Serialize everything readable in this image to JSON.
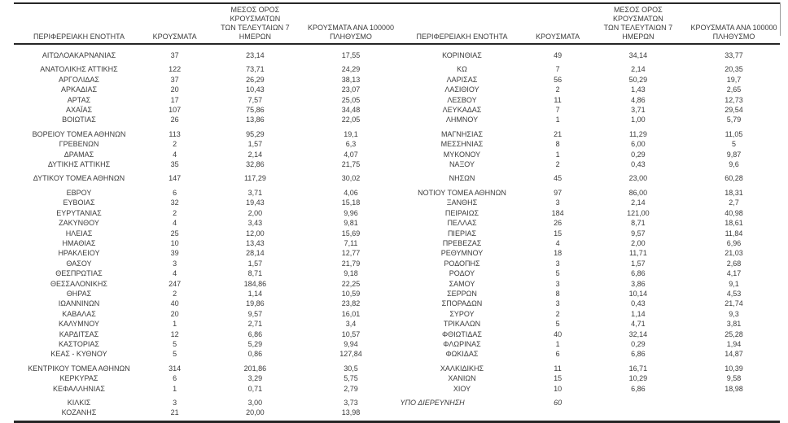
{
  "header": {
    "region": "ΠΕΡΙΦΕΡΕΙΑΚΗ ΕΝΟΤΗΤΑ",
    "cases": "ΚΡΟΥΣΜΑΤΑ",
    "avg7": "ΜΕΣΟΣ ΟΡΟΣ ΚΡΟΥΣΜΑΤΩΝ\nΤΩΝ ΤΕΛΕΥΤΑΙΩΝ 7\nΗΜΕΡΩΝ",
    "per100k": "ΚΡΟΥΣΜΑΤΑ ΑΝΑ 100000\nΠΛΗΘΥΣΜΟ"
  },
  "colors": {
    "text": "#3c3c3c",
    "rule": "#262626",
    "edge_tick": "#9b9b9b",
    "background": "#ffffff"
  },
  "tables": {
    "left": {
      "groups": [
        {
          "rows": [
            {
              "region": "ΑΙΤΩΛΟΑΚΑΡΝΑΝΙΑΣ",
              "cases": "37",
              "avg7": "23,14",
              "per100k": "17,55"
            }
          ]
        },
        {
          "rows": [
            {
              "region": "ΑΝΑΤΟΛΙΚΗΣ ΑΤΤΙΚΗΣ",
              "cases": "122",
              "avg7": "73,71",
              "per100k": "24,29"
            },
            {
              "region": "ΑΡΓΟΛΙΔΑΣ",
              "cases": "37",
              "avg7": "26,29",
              "per100k": "38,13"
            },
            {
              "region": "ΑΡΚΑΔΙΑΣ",
              "cases": "20",
              "avg7": "10,43",
              "per100k": "23,07"
            },
            {
              "region": "ΑΡΤΑΣ",
              "cases": "17",
              "avg7": "7,57",
              "per100k": "25,05"
            },
            {
              "region": "ΑΧΑΪΑΣ",
              "cases": "107",
              "avg7": "75,86",
              "per100k": "34,48"
            },
            {
              "region": "ΒΟΙΩΤΙΑΣ",
              "cases": "26",
              "avg7": "13,86",
              "per100k": "22,05"
            }
          ]
        },
        {
          "rows": [
            {
              "region": "ΒΟΡΕΙΟΥ ΤΟΜΕΑ ΑΘΗΝΩΝ",
              "cases": "113",
              "avg7": "95,29",
              "per100k": "19,1"
            },
            {
              "region": "ΓΡΕΒΕΝΩΝ",
              "cases": "2",
              "avg7": "1,57",
              "per100k": "6,3"
            },
            {
              "region": "ΔΡΑΜΑΣ",
              "cases": "4",
              "avg7": "2,14",
              "per100k": "4,07"
            },
            {
              "region": "ΔΥΤΙΚΗΣ ΑΤΤΙΚΗΣ",
              "cases": "35",
              "avg7": "32,86",
              "per100k": "21,75"
            }
          ]
        },
        {
          "rows": [
            {
              "region": "ΔΥΤΙΚΟΥ ΤΟΜΕΑ ΑΘΗΝΩΝ",
              "cases": "147",
              "avg7": "117,29",
              "per100k": "30,02"
            }
          ]
        },
        {
          "rows": [
            {
              "region": "ΕΒΡΟΥ",
              "cases": "6",
              "avg7": "3,71",
              "per100k": "4,06"
            },
            {
              "region": "ΕΥΒΟΙΑΣ",
              "cases": "32",
              "avg7": "19,43",
              "per100k": "15,18"
            },
            {
              "region": "ΕΥΡΥΤΑΝΙΑΣ",
              "cases": "2",
              "avg7": "2,00",
              "per100k": "9,96"
            },
            {
              "region": "ΖΑΚΥΝΘΟΥ",
              "cases": "4",
              "avg7": "3,43",
              "per100k": "9,81"
            },
            {
              "region": "ΗΛΕΙΑΣ",
              "cases": "25",
              "avg7": "12,00",
              "per100k": "15,69"
            },
            {
              "region": "ΗΜΑΘΙΑΣ",
              "cases": "10",
              "avg7": "13,43",
              "per100k": "7,11"
            },
            {
              "region": "ΗΡΑΚΛΕΙΟΥ",
              "cases": "39",
              "avg7": "28,14",
              "per100k": "12,77"
            },
            {
              "region": "ΘΑΣΟΥ",
              "cases": "3",
              "avg7": "1,57",
              "per100k": "21,79"
            },
            {
              "region": "ΘΕΣΠΡΩΤΙΑΣ",
              "cases": "4",
              "avg7": "8,71",
              "per100k": "9,18"
            },
            {
              "region": "ΘΕΣΣΑΛΟΝΙΚΗΣ",
              "cases": "247",
              "avg7": "184,86",
              "per100k": "22,25"
            },
            {
              "region": "ΘΗΡΑΣ",
              "cases": "2",
              "avg7": "1,14",
              "per100k": "10,59"
            },
            {
              "region": "ΙΩΑΝΝΙΝΩΝ",
              "cases": "40",
              "avg7": "19,86",
              "per100k": "23,82"
            },
            {
              "region": "ΚΑΒΑΛΑΣ",
              "cases": "20",
              "avg7": "9,57",
              "per100k": "16,01"
            },
            {
              "region": "ΚΑΛΥΜΝΟΥ",
              "cases": "1",
              "avg7": "2,71",
              "per100k": "3,4"
            },
            {
              "region": "ΚΑΡΔΙΤΣΑΣ",
              "cases": "12",
              "avg7": "6,86",
              "per100k": "10,57"
            },
            {
              "region": "ΚΑΣΤΟΡΙΑΣ",
              "cases": "5",
              "avg7": "5,29",
              "per100k": "9,94"
            },
            {
              "region": "ΚΕΑΣ - ΚΥΘΝΟΥ",
              "cases": "5",
              "avg7": "0,86",
              "per100k": "127,84"
            }
          ]
        },
        {
          "rows": [
            {
              "region": "ΚΕΝΤΡΙΚΟΥ ΤΟΜΕΑ ΑΘΗΝΩΝ",
              "cases": "314",
              "avg7": "201,86",
              "per100k": "30,5"
            },
            {
              "region": "ΚΕΡΚΥΡΑΣ",
              "cases": "6",
              "avg7": "3,29",
              "per100k": "5,75"
            },
            {
              "region": "ΚΕΦΑΛΛΗΝΙΑΣ",
              "cases": "1",
              "avg7": "0,71",
              "per100k": "2,79"
            }
          ]
        },
        {
          "rows": [
            {
              "region": "ΚΙΛΚΙΣ",
              "cases": "3",
              "avg7": "3,00",
              "per100k": "3,73"
            },
            {
              "region": "ΚΟΖΑΝΗΣ",
              "cases": "21",
              "avg7": "20,00",
              "per100k": "13,98"
            }
          ]
        }
      ]
    },
    "right": {
      "groups": [
        {
          "rows": [
            {
              "region": "ΚΟΡΙΝΘΙΑΣ",
              "cases": "49",
              "avg7": "34,14",
              "per100k": "33,77"
            }
          ]
        },
        {
          "rows": [
            {
              "region": "ΚΩ",
              "cases": "7",
              "avg7": "2,14",
              "per100k": "20,35"
            },
            {
              "region": "ΛΑΡΙΣΑΣ",
              "cases": "56",
              "avg7": "50,29",
              "per100k": "19,7"
            },
            {
              "region": "ΛΑΣΙΘΙΟΥ",
              "cases": "2",
              "avg7": "1,43",
              "per100k": "2,65"
            },
            {
              "region": "ΛΕΣΒΟΥ",
              "cases": "11",
              "avg7": "4,86",
              "per100k": "12,73"
            },
            {
              "region": "ΛΕΥΚΑΔΑΣ",
              "cases": "7",
              "avg7": "3,71",
              "per100k": "29,54"
            },
            {
              "region": "ΛΗΜΝΟΥ",
              "cases": "1",
              "avg7": "1,00",
              "per100k": "5,79"
            }
          ]
        },
        {
          "rows": [
            {
              "region": "ΜΑΓΝΗΣΙΑΣ",
              "cases": "21",
              "avg7": "11,29",
              "per100k": "11,05"
            },
            {
              "region": "ΜΕΣΣΗΝΙΑΣ",
              "cases": "8",
              "avg7": "6,00",
              "per100k": "5"
            },
            {
              "region": "ΜΥΚΟΝΟΥ",
              "cases": "1",
              "avg7": "0,29",
              "per100k": "9,87"
            },
            {
              "region": "ΝΑΞΟΥ",
              "cases": "2",
              "avg7": "0,43",
              "per100k": "9,6"
            }
          ]
        },
        {
          "rows": [
            {
              "region": "ΝΗΣΩΝ",
              "cases": "45",
              "avg7": "23,00",
              "per100k": "60,28"
            }
          ]
        },
        {
          "rows": [
            {
              "region": "ΝΟΤΙΟΥ ΤΟΜΕΑ ΑΘΗΝΩΝ",
              "cases": "97",
              "avg7": "86,00",
              "per100k": "18,31"
            },
            {
              "region": "ΞΑΝΘΗΣ",
              "cases": "3",
              "avg7": "2,14",
              "per100k": "2,7"
            },
            {
              "region": "ΠΕΙΡΑΙΩΣ",
              "cases": "184",
              "avg7": "121,00",
              "per100k": "40,98"
            },
            {
              "region": "ΠΕΛΛΑΣ",
              "cases": "26",
              "avg7": "8,71",
              "per100k": "18,61"
            },
            {
              "region": "ΠΙΕΡΙΑΣ",
              "cases": "15",
              "avg7": "9,57",
              "per100k": "11,84"
            },
            {
              "region": "ΠΡΕΒΕΖΑΣ",
              "cases": "4",
              "avg7": "2,00",
              "per100k": "6,96"
            },
            {
              "region": "ΡΕΘΥΜΝΟΥ",
              "cases": "18",
              "avg7": "11,71",
              "per100k": "21,03"
            },
            {
              "region": "ΡΟΔΟΠΗΣ",
              "cases": "3",
              "avg7": "1,57",
              "per100k": "2,68"
            },
            {
              "region": "ΡΟΔΟΥ",
              "cases": "5",
              "avg7": "6,86",
              "per100k": "4,17"
            },
            {
              "region": "ΣΑΜΟΥ",
              "cases": "3",
              "avg7": "3,86",
              "per100k": "9,1"
            },
            {
              "region": "ΣΕΡΡΩΝ",
              "cases": "8",
              "avg7": "10,14",
              "per100k": "4,53"
            },
            {
              "region": "ΣΠΟΡΑΔΩΝ",
              "cases": "3",
              "avg7": "0,43",
              "per100k": "21,74"
            },
            {
              "region": "ΣΥΡΟΥ",
              "cases": "2",
              "avg7": "1,14",
              "per100k": "9,3"
            },
            {
              "region": "ΤΡΙΚΑΛΩΝ",
              "cases": "5",
              "avg7": "4,71",
              "per100k": "3,81"
            },
            {
              "region": "ΦΘΙΩΤΙΔΑΣ",
              "cases": "40",
              "avg7": "32,14",
              "per100k": "25,28"
            },
            {
              "region": "ΦΛΩΡΙΝΑΣ",
              "cases": "1",
              "avg7": "0,29",
              "per100k": "1,94"
            },
            {
              "region": "ΦΩΚΙΔΑΣ",
              "cases": "6",
              "avg7": "6,86",
              "per100k": "14,87"
            }
          ]
        },
        {
          "rows": [
            {
              "region": "ΧΑΛΚΙΔΙΚΗΣ",
              "cases": "11",
              "avg7": "16,71",
              "per100k": "10,39"
            },
            {
              "region": "ΧΑΝΙΩΝ",
              "cases": "15",
              "avg7": "10,29",
              "per100k": "9,58"
            },
            {
              "region": "ΧΙΟΥ",
              "cases": "10",
              "avg7": "6,86",
              "per100k": "18,98"
            }
          ]
        },
        {
          "rows": [
            {
              "region": "ΥΠΟ ΔΙΕΡΕΥΝΗΣΗ",
              "cases": "60",
              "avg7": "",
              "per100k": "",
              "italic": true
            }
          ]
        }
      ]
    }
  }
}
